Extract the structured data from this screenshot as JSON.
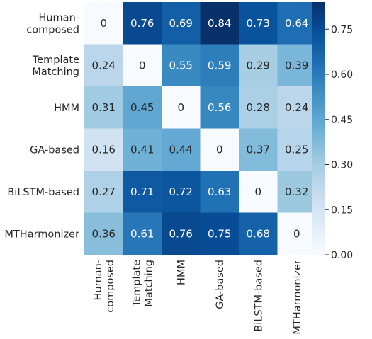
{
  "chart_data": {
    "type": "heatmap",
    "title": "",
    "xlabel": "",
    "ylabel": "",
    "rows": [
      [
        "Human-",
        "composed"
      ],
      [
        "Template",
        "Matching"
      ],
      [
        "HMM"
      ],
      [
        "GA-based"
      ],
      [
        "BiLSTM-based"
      ],
      [
        "MTHarmonizer"
      ]
    ],
    "columns": [
      [
        "Human-",
        "composed"
      ],
      [
        "Template",
        "Matching"
      ],
      [
        "HMM"
      ],
      [
        "GA-based"
      ],
      [
        "BiLSTM-based"
      ],
      [
        "MTHarmonizer"
      ]
    ],
    "values": [
      [
        0,
        0.76,
        0.69,
        0.84,
        0.73,
        0.64
      ],
      [
        0.24,
        0,
        0.55,
        0.59,
        0.29,
        0.39
      ],
      [
        0.31,
        0.45,
        0,
        0.56,
        0.28,
        0.24
      ],
      [
        0.16,
        0.41,
        0.44,
        0,
        0.37,
        0.25
      ],
      [
        0.27,
        0.71,
        0.72,
        0.63,
        0,
        0.32
      ],
      [
        0.36,
        0.61,
        0.76,
        0.75,
        0.68,
        0
      ]
    ],
    "value_labels": [
      [
        "0",
        "0.76",
        "0.69",
        "0.84",
        "0.73",
        "0.64"
      ],
      [
        "0.24",
        "0",
        "0.55",
        "0.59",
        "0.29",
        "0.39"
      ],
      [
        "0.31",
        "0.45",
        "0",
        "0.56",
        "0.28",
        "0.24"
      ],
      [
        "0.16",
        "0.41",
        "0.44",
        "0",
        "0.37",
        "0.25"
      ],
      [
        "0.27",
        "0.71",
        "0.72",
        "0.63",
        "0",
        "0.32"
      ],
      [
        "0.36",
        "0.61",
        "0.76",
        "0.75",
        "0.68",
        "0"
      ]
    ],
    "colormap": "Blues",
    "vmin": 0,
    "vmax": 0.84,
    "colorbar": {
      "ticks": [
        0.0,
        0.15,
        0.3,
        0.45,
        0.6,
        0.75
      ],
      "tick_labels": [
        "0.00",
        "0.15",
        "0.30",
        "0.45",
        "0.60",
        "0.75"
      ],
      "placement": "right"
    },
    "grid": false
  }
}
